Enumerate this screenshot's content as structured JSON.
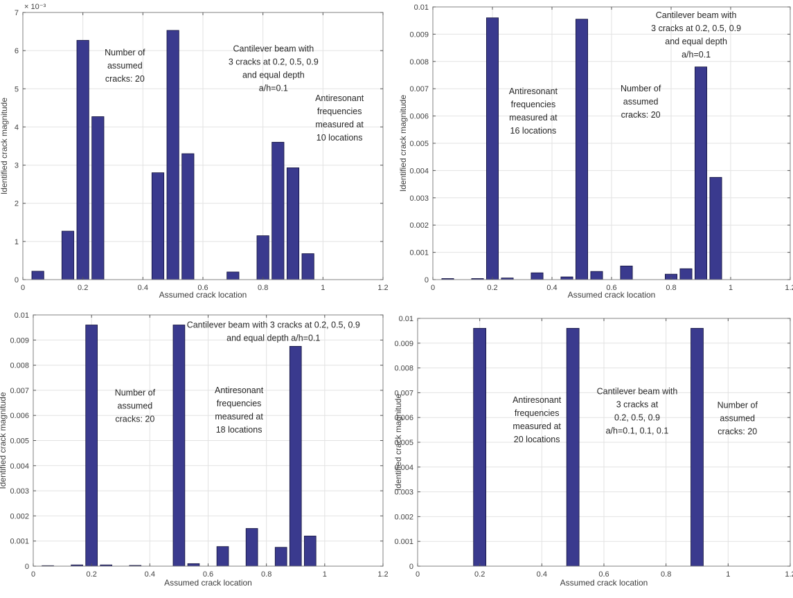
{
  "colors": {
    "bar_fill": "#3a3a8e",
    "bar_edge": "#10103a",
    "grid": "#e2e2e2",
    "axis_box": "#808080",
    "tick": "#555555",
    "tick_label": "#404040",
    "axis_label": "#3c3c3c",
    "annotation": "#262626",
    "background": "#ffffff"
  },
  "chart_data": [
    {
      "type": "bar",
      "panel": "top-left",
      "xlabel": "Assumed crack location",
      "ylabel": "Identified crack magnitude",
      "y_exponent": "× 10⁻³",
      "xlim": [
        0,
        1.2
      ],
      "ylim": [
        0,
        7
      ],
      "grid": true,
      "x_ticks": [
        0,
        0.2,
        0.4,
        0.6,
        0.8,
        1.0,
        1.2
      ],
      "x_tick_labels": [
        "0",
        "0.2",
        "0.4",
        "0.6",
        "0.8",
        "1",
        "1.2"
      ],
      "y_ticks": [
        0,
        1,
        2,
        3,
        4,
        5,
        6,
        7
      ],
      "y_tick_labels": [
        "0",
        "1",
        "2",
        "3",
        "4",
        "5",
        "6",
        "7"
      ],
      "bar_width": 0.04,
      "x": [
        0.05,
        0.15,
        0.2,
        0.25,
        0.45,
        0.5,
        0.55,
        0.7,
        0.8,
        0.85,
        0.9,
        0.95
      ],
      "values": [
        0.22,
        1.27,
        6.27,
        4.27,
        2.8,
        6.53,
        3.3,
        0.2,
        1.15,
        3.6,
        2.93,
        0.68
      ],
      "annotations": [
        {
          "x": 0.34,
          "y": 5.95,
          "lines": [
            "Number of",
            "assumed",
            "cracks: 20"
          ]
        },
        {
          "x": 0.835,
          "y": 6.05,
          "lines": [
            "Cantilever beam with",
            "3 cracks at 0.2, 0.5, 0.9",
            "and equal depth",
            "a/h=0.1"
          ]
        },
        {
          "x": 1.055,
          "y": 4.75,
          "lines": [
            "Antiresonant",
            "frequencies",
            "measured at",
            "10 locations"
          ]
        }
      ],
      "margins": {
        "l": 33,
        "t": 18,
        "r": 19,
        "b": 28,
        "ylabel_x": 10,
        "xlabel_dy": 26
      }
    },
    {
      "type": "bar",
      "panel": "top-right",
      "xlabel": "Assumed crack location",
      "ylabel": "Identified crack magnitude",
      "y_exponent": "",
      "xlim": [
        0,
        1.2
      ],
      "ylim": [
        0,
        0.01
      ],
      "grid": true,
      "x_ticks": [
        0,
        0.2,
        0.4,
        0.6,
        0.8,
        1.0,
        1.2
      ],
      "x_tick_labels": [
        "0",
        "0.2",
        "0.4",
        "0.6",
        "0.8",
        "1",
        "1.2"
      ],
      "y_ticks": [
        0,
        0.001,
        0.002,
        0.003,
        0.004,
        0.005,
        0.006,
        0.007,
        0.008,
        0.009,
        0.01
      ],
      "y_tick_labels": [
        "0",
        "0.001",
        "0.002",
        "0.003",
        "0.004",
        "0.005",
        "0.006",
        "0.007",
        "0.008",
        "0.009",
        "0.01"
      ],
      "bar_width": 0.04,
      "x": [
        0.05,
        0.15,
        0.2,
        0.25,
        0.35,
        0.45,
        0.5,
        0.55,
        0.65,
        0.8,
        0.85,
        0.9,
        0.95
      ],
      "values": [
        4e-05,
        4e-05,
        0.0096,
        6e-05,
        0.00025,
        0.0001,
        0.00955,
        0.0003,
        0.0005,
        0.0002,
        0.0004,
        0.0078,
        0.00375
      ],
      "annotations": [
        {
          "x": 0.337,
          "y": 0.0069,
          "lines": [
            "Antiresonant",
            "frequencies",
            "measured at",
            "16 locations"
          ]
        },
        {
          "x": 0.698,
          "y": 0.007,
          "lines": [
            "Number of",
            "assumed",
            "cracks: 20"
          ]
        },
        {
          "x": 0.884,
          "y": 0.0097,
          "lines": [
            "Cantilever beam with",
            "3 cracks at 0.2, 0.5, 0.9",
            "and equal depth",
            "a/h=0.1"
          ]
        }
      ],
      "margins": {
        "l": 52,
        "t": 10,
        "r": 4,
        "b": 28,
        "ylabel_x": 13,
        "xlabel_dy": 26
      }
    },
    {
      "type": "bar",
      "panel": "bottom-left",
      "xlabel": "Assumed crack location",
      "ylabel": "Identified crack magnitude",
      "y_exponent": "",
      "xlim": [
        0,
        1.2
      ],
      "ylim": [
        0,
        0.01
      ],
      "grid": true,
      "x_ticks": [
        0,
        0.2,
        0.4,
        0.6,
        0.8,
        1.0,
        1.2
      ],
      "x_tick_labels": [
        "0",
        "0.2",
        "0.4",
        "0.6",
        "0.8",
        "1",
        "1.2"
      ],
      "y_ticks": [
        0,
        0.001,
        0.002,
        0.003,
        0.004,
        0.005,
        0.006,
        0.007,
        0.008,
        0.009,
        0.01
      ],
      "y_tick_labels": [
        "0",
        "0.001",
        "0.002",
        "0.003",
        "0.004",
        "0.005",
        "0.006",
        "0.007",
        "0.008",
        "0.009",
        "0.01"
      ],
      "bar_width": 0.04,
      "x": [
        0.05,
        0.15,
        0.2,
        0.25,
        0.35,
        0.5,
        0.55,
        0.65,
        0.75,
        0.85,
        0.9,
        0.95
      ],
      "values": [
        2e-05,
        5e-05,
        0.0096,
        5e-05,
        3e-05,
        0.0096,
        0.0001,
        0.00078,
        0.0015,
        0.00075,
        0.00875,
        0.0012
      ],
      "annotations": [
        {
          "x": 0.824,
          "y": 0.0096,
          "lines": [
            "Cantilever beam with 3 cracks at 0.2, 0.5, 0.9",
            "and equal depth a/h=0.1"
          ]
        },
        {
          "x": 0.349,
          "y": 0.0069,
          "lines": [
            "Number of",
            "assumed",
            "cracks: 20"
          ]
        },
        {
          "x": 0.706,
          "y": 0.007,
          "lines": [
            "Antiresonant",
            "frequencies",
            "measured at",
            "18 locations"
          ]
        }
      ],
      "margins": {
        "l": 48,
        "t": 23,
        "r": 19,
        "b": 46,
        "ylabel_x": 8,
        "xlabel_dy": 28
      }
    },
    {
      "type": "bar",
      "panel": "bottom-right",
      "xlabel": "Assumed crack location",
      "ylabel": "Identified crack magnitude",
      "y_exponent": "",
      "xlim": [
        0,
        1.2
      ],
      "ylim": [
        0,
        0.01
      ],
      "grid": true,
      "x_ticks": [
        0,
        0.2,
        0.4,
        0.6,
        0.8,
        1.0,
        1.2
      ],
      "x_tick_labels": [
        "0",
        "0.2",
        "0.4",
        "0.6",
        "0.8",
        "1",
        "1.2"
      ],
      "y_ticks": [
        0,
        0.001,
        0.002,
        0.003,
        0.004,
        0.005,
        0.006,
        0.007,
        0.008,
        0.009,
        0.01
      ],
      "y_tick_labels": [
        "0",
        "0.001",
        "0.002",
        "0.003",
        "0.004",
        "0.005",
        "0.006",
        "0.007",
        "0.008",
        "0.009",
        "0.01"
      ],
      "bar_width": 0.04,
      "x": [
        0.2,
        0.5,
        0.9
      ],
      "values": [
        0.0096,
        0.0096,
        0.0096
      ],
      "annotations": [
        {
          "x": 0.384,
          "y": 0.0067,
          "lines": [
            "Antiresonant",
            "frequencies",
            "measured at",
            "20 locations"
          ]
        },
        {
          "x": 0.707,
          "y": 0.00705,
          "lines": [
            "Cantilever beam with",
            "3 cracks at",
            "0.2, 0.5, 0.9",
            "a/h=0.1, 0.1, 0.1"
          ]
        },
        {
          "x": 1.03,
          "y": 0.0065,
          "lines": [
            "Number of",
            "assumed",
            "cracks: 20"
          ]
        }
      ],
      "margins": {
        "l": 30,
        "t": 28,
        "r": 4,
        "b": 46,
        "ylabel_x": 6,
        "xlabel_dy": 28
      }
    }
  ]
}
